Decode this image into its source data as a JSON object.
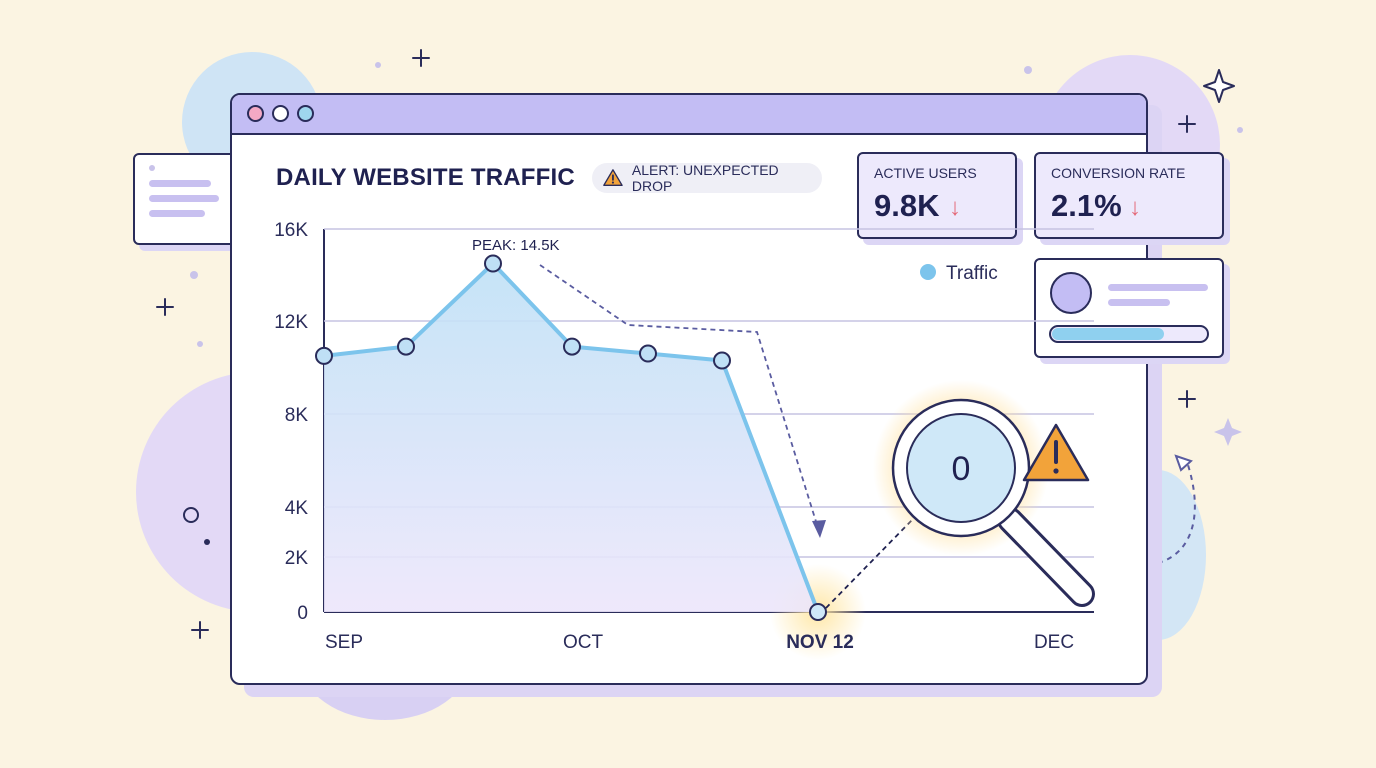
{
  "header": {
    "title": "DAILY WEBSITE TRAFFIC"
  },
  "alert": {
    "label": "ALERT: UNEXPECTED DROP",
    "icon": "warning-icon"
  },
  "kpis": [
    {
      "label": "ACTIVE USERS",
      "value": "9.8K",
      "trend": "↓"
    },
    {
      "label": "CONVERSION RATE",
      "value": "2.1%",
      "trend": "↓"
    }
  ],
  "colors": {
    "line": "#7cc4ec",
    "area_top": "#bfe1f6",
    "area_bottom": "#ede6fb",
    "titlebar": "#c3bdf4",
    "alert": "#f2a33a",
    "trend_down": "#e46a7a"
  },
  "chart_data": {
    "type": "line",
    "title": "DAILY WEBSITE TRAFFIC",
    "y_ticks": [
      "16K",
      "12K",
      "8K",
      "4K",
      "2K",
      "0"
    ],
    "x_ticks": [
      "SEP",
      "OCT",
      "NOV 12",
      "DEC"
    ],
    "legend": {
      "placement": "top-right",
      "label": "Traffic"
    },
    "series": [
      {
        "name": "Traffic",
        "values": [
          10500,
          10900,
          14500,
          10900,
          10600,
          10300,
          0
        ]
      }
    ],
    "annotations": {
      "peak_label": "PEAK: 14.5K",
      "zero_label": "0"
    },
    "grid": true
  }
}
